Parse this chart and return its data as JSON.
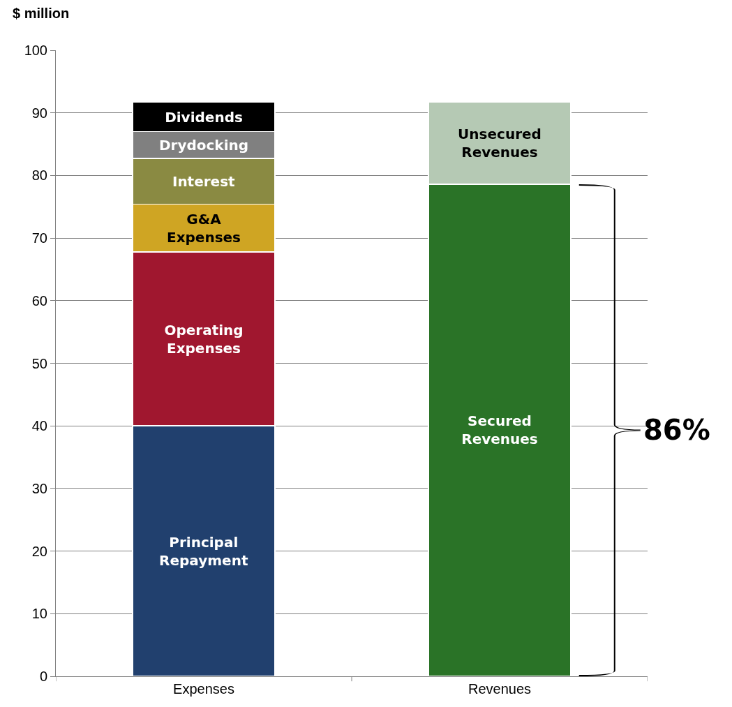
{
  "chart_data": {
    "type": "bar",
    "ylabel": "$ million",
    "categories": [
      "Expenses",
      "Revenues"
    ],
    "stacked": true,
    "series": [
      {
        "name": "Principal Repayment",
        "color": "#21406e",
        "values": [
          40,
          null
        ]
      },
      {
        "name": "Operating Expenses",
        "color": "#a0172f",
        "values": [
          27.8,
          null
        ]
      },
      {
        "name": "G&A Expenses",
        "color": "#cfa523",
        "values": [
          7.6,
          null
        ]
      },
      {
        "name": "Interest",
        "color": "#8a8a42",
        "values": [
          7.3,
          null
        ]
      },
      {
        "name": "Drydocking",
        "color": "#808080",
        "values": [
          4.3,
          null
        ]
      },
      {
        "name": "Dividends",
        "color": "#000000",
        "values": [
          4.7,
          null
        ]
      },
      {
        "name": "Secured Revenues",
        "color": "#2a7327",
        "values": [
          null,
          78.6
        ]
      },
      {
        "name": "Unsecured Revenues",
        "color": "#b5c9b4",
        "values": [
          null,
          13.1
        ]
      }
    ],
    "ylim": [
      0,
      100
    ],
    "yticks": [
      0,
      10,
      20,
      30,
      40,
      50,
      60,
      70,
      80,
      90,
      100
    ],
    "grid": "y",
    "legend": false,
    "annotations": [
      "86%"
    ]
  }
}
